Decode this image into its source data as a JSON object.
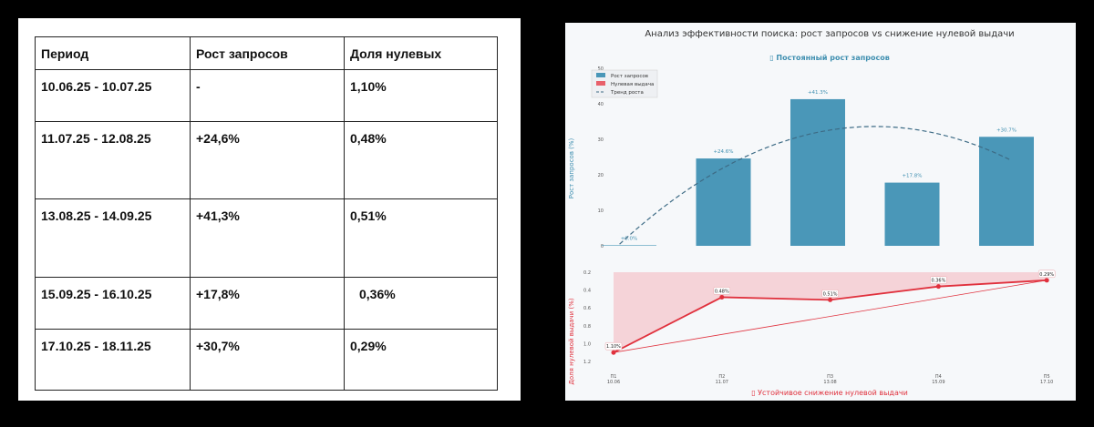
{
  "table": {
    "headers": [
      "Период",
      "Рост запросов",
      "Доля нулевых"
    ],
    "rows": [
      [
        "10.06.25 - 10.07.25",
        "-",
        "1,10%"
      ],
      [
        "11.07.25 - 12.08.25",
        "+24,6%",
        "0,48%"
      ],
      [
        "13.08.25 - 14.09.25",
        "+41,3%",
        "0,51%"
      ],
      [
        "15.09.25 - 16.10.25",
        "+17,8%",
        "0,36%"
      ],
      [
        "17.10.25 - 18.11.25",
        "+30,7%",
        "0,29%"
      ]
    ]
  },
  "chart_data": [
    {
      "type": "bar",
      "title": "Анализ эффективности поиска: рост запросов vs снижение нулевой выдачи",
      "subtitle": "▯ Постоянный рост запросов",
      "ylabel": "Рост запросов (%)",
      "ylim": [
        0,
        50
      ],
      "yticks": [
        "0",
        "10",
        "20",
        "30",
        "40",
        "50"
      ],
      "categories": [
        "П1",
        "П2",
        "П3",
        "П4",
        "П5"
      ],
      "values": [
        0,
        24.6,
        41.3,
        17.8,
        30.7
      ],
      "data_labels": [
        "+0.0%",
        "+24.6%",
        "+41.3%",
        "+17.8%",
        "+30.7%"
      ],
      "legend": [
        "Рост запросов",
        "Нулевая выдача",
        "Тренд роста"
      ],
      "legend_placement": "top-left",
      "colors": {
        "bar": "#4a97b8",
        "zero": "#e8606a",
        "trend": "#3d6b85"
      }
    },
    {
      "type": "line",
      "subtitle": "▯ Устойчивое снижение нулевой выдачи",
      "ylabel": "Доля нулевой выдачи (%)",
      "ylim": [
        1.2,
        0.2
      ],
      "inverted_y": true,
      "yticks": [
        "0.2",
        "0.4",
        "0.6",
        "0.8",
        "1.0",
        "1.2"
      ],
      "x": [
        "П1\n10.06",
        "П2\n11.07",
        "П3\n13.08",
        "П4\n15.09",
        "П5\n17.10"
      ],
      "values": [
        1.1,
        0.48,
        0.51,
        0.36,
        0.29
      ],
      "data_labels": [
        "1.10%",
        "0.48%",
        "0.51%",
        "0.36%",
        "0.29%"
      ],
      "colors": {
        "line": "#e0313d",
        "fill": "#f4cdd1"
      }
    }
  ]
}
